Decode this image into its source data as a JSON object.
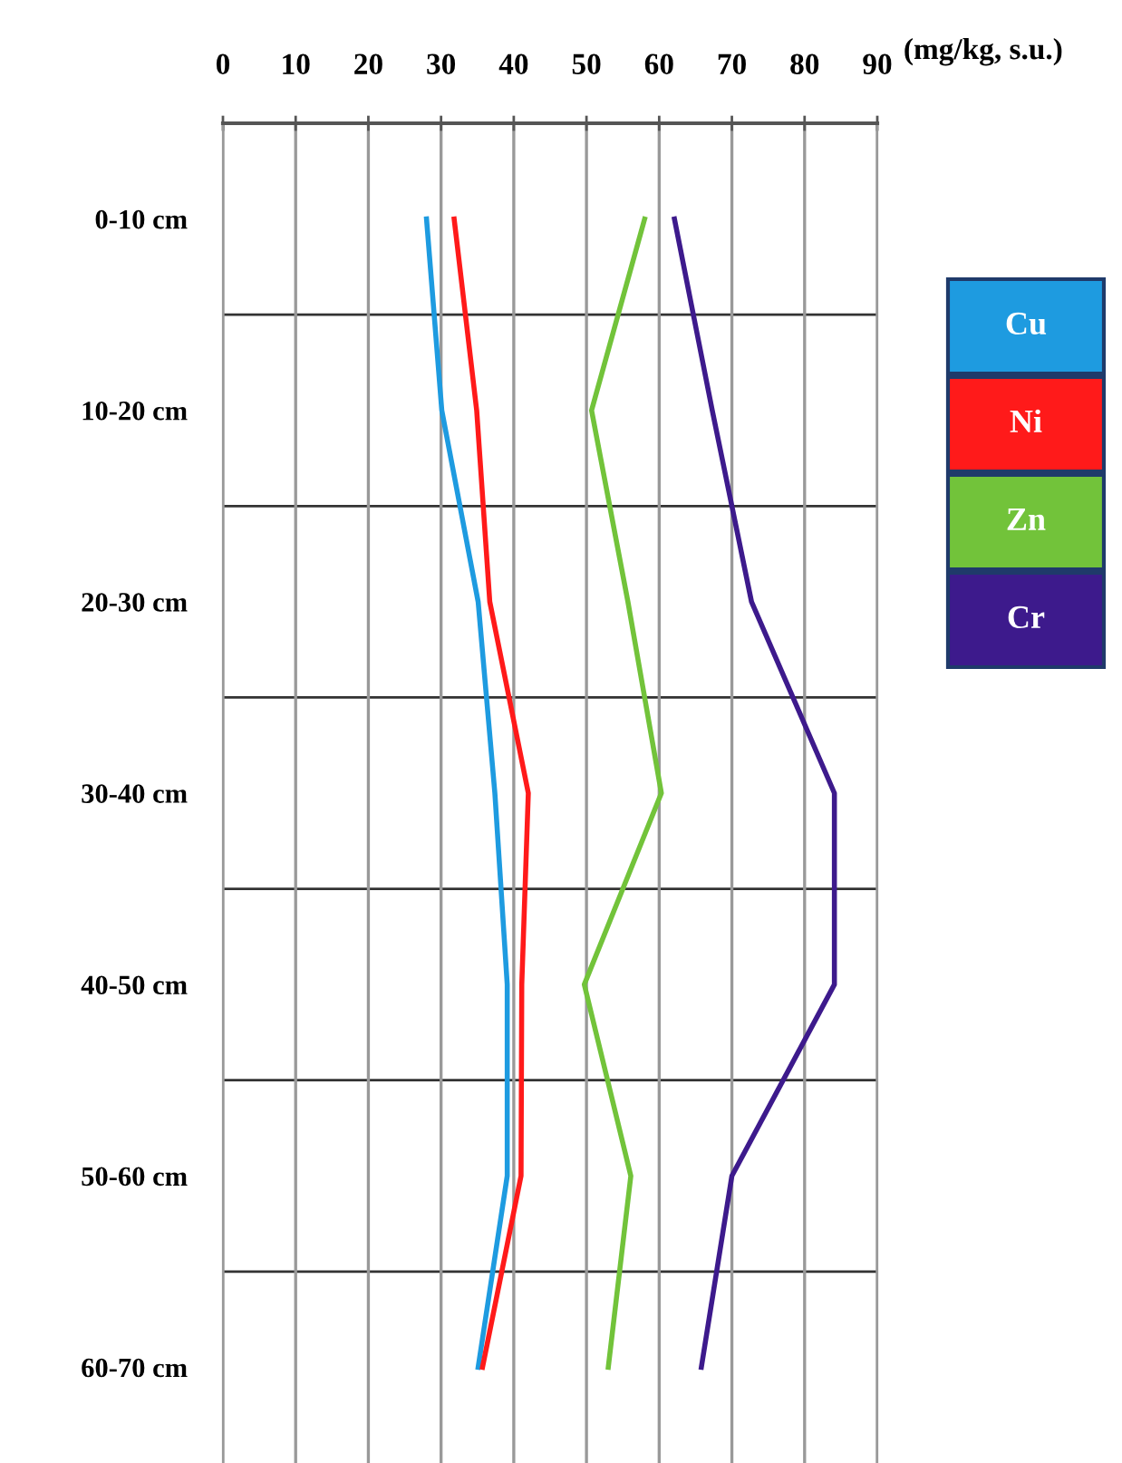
{
  "chart_data": {
    "type": "line",
    "xlabel": "(mg/kg, s.u.)",
    "categories": [
      "0-10 cm",
      "10-20 cm",
      "20-30 cm",
      "30-40 cm",
      "40-50 cm",
      "50-60 cm",
      "60-70 cm"
    ],
    "orientation": "horizontal",
    "series": [
      {
        "name": "Cu",
        "color": "#1e9be0",
        "values": [
          28.0,
          30.1,
          35.1,
          37.4,
          39.1,
          39.1,
          35.1
        ]
      },
      {
        "name": "Ni",
        "color": "#ff1a1a",
        "values": [
          31.8,
          34.9,
          36.7,
          42.0,
          41.1,
          41.0,
          35.7
        ]
      },
      {
        "name": "Zn",
        "color": "#72c33a",
        "values": [
          58.0,
          50.7,
          55.7,
          60.3,
          49.7,
          56.1,
          53.0
        ]
      },
      {
        "name": "Cr",
        "color": "#3d1a8c",
        "values": [
          62.1,
          67.3,
          72.7,
          84.1,
          84.1,
          70.0,
          65.8
        ]
      }
    ],
    "xlim": [
      0,
      90
    ],
    "xticks": [
      0,
      10,
      20,
      30,
      40,
      50,
      60,
      70,
      80,
      90
    ],
    "grid": true,
    "legend": "right",
    "marker": "none",
    "line_style": "solid"
  }
}
